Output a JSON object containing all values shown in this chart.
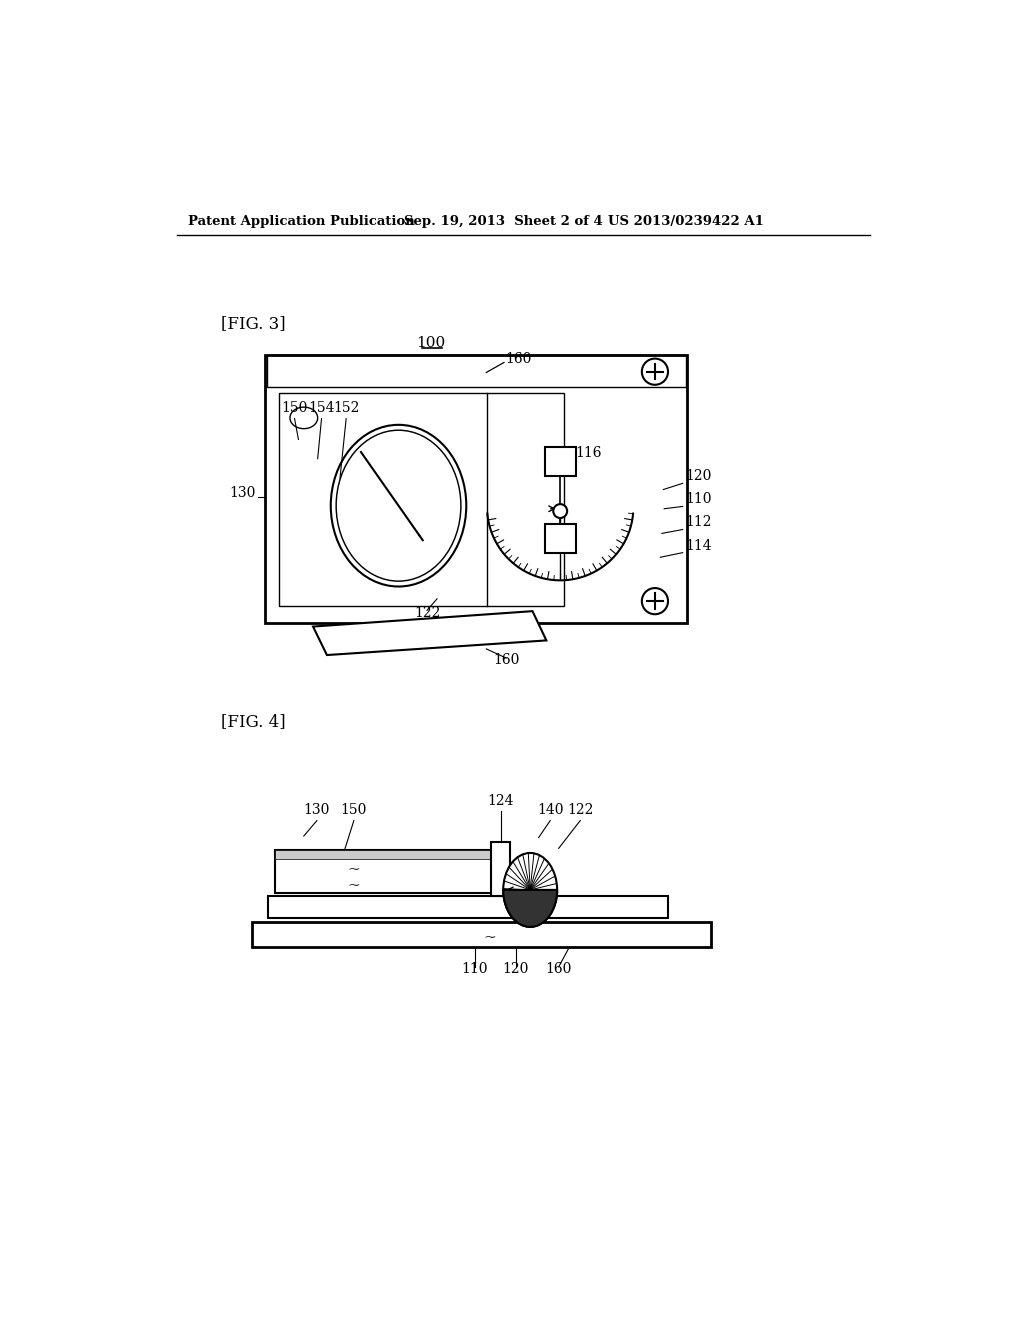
{
  "bg_color": "#ffffff",
  "header_left": "Patent Application Publication",
  "header_mid": "Sep. 19, 2013  Sheet 2 of 4",
  "header_right": "US 2013/0239422 A1",
  "fig3_label": "[FIG. 3]",
  "fig4_label": "[FIG. 4]",
  "label_100": "100",
  "label_160_top": "160",
  "label_150": "150",
  "label_154": "154",
  "label_152": "152",
  "label_130": "130",
  "label_116": "116",
  "label_120": "120",
  "label_110": "110",
  "label_112": "112",
  "label_114": "114",
  "label_122": "122",
  "label_160_bot": "160",
  "label_130b": "130",
  "label_150b": "150",
  "label_124": "124",
  "label_140": "140",
  "label_122b": "122",
  "label_110b": "110",
  "label_120b": "120",
  "label_160b": "160"
}
